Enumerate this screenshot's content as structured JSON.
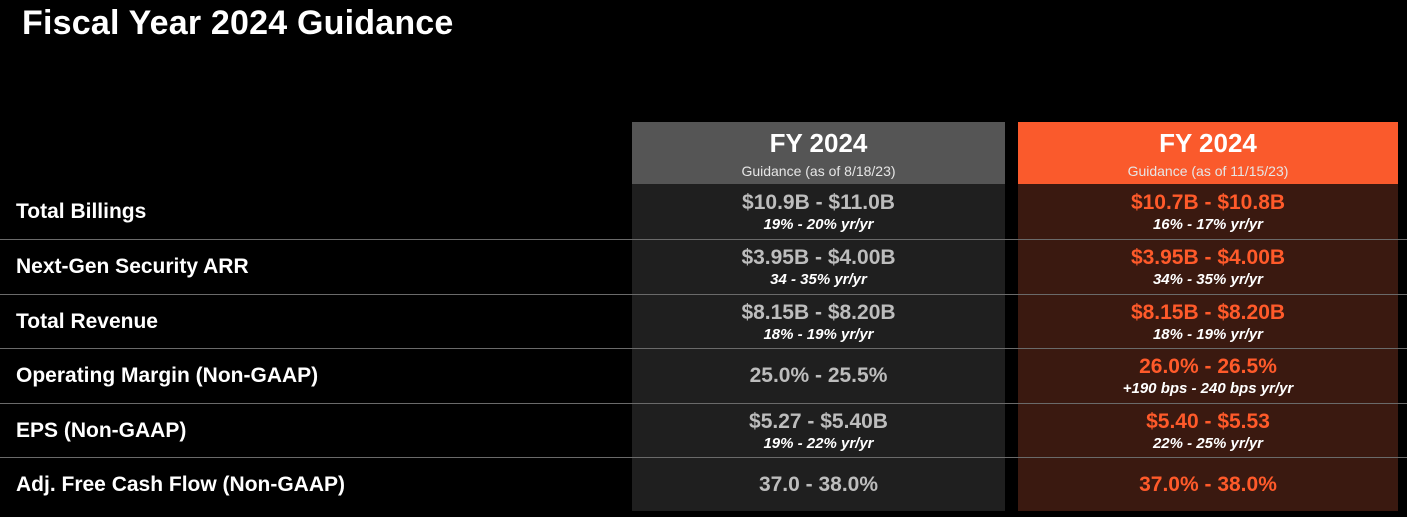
{
  "title": "Fiscal Year 2024 Guidance",
  "columns": [
    {
      "heading": "FY 2024",
      "subheading": "Guidance (as of 8/18/23)"
    },
    {
      "heading": "FY 2024",
      "subheading": "Guidance (as of 11/15/23)"
    }
  ],
  "rows": [
    {
      "label": "Total Billings",
      "old": {
        "value": "$10.9B - $11.0B",
        "growth": "19% - 20% yr/yr"
      },
      "new": {
        "value": "$10.7B - $10.8B",
        "growth": "16% - 17% yr/yr"
      }
    },
    {
      "label": "Next-Gen Security ARR",
      "old": {
        "value": "$3.95B - $4.00B",
        "growth": "34 - 35% yr/yr"
      },
      "new": {
        "value": "$3.95B - $4.00B",
        "growth": "34% - 35% yr/yr"
      }
    },
    {
      "label": "Total Revenue",
      "old": {
        "value": "$8.15B - $8.20B",
        "growth": "18% - 19% yr/yr"
      },
      "new": {
        "value": "$8.15B - $8.20B",
        "growth": "18% - 19% yr/yr"
      }
    },
    {
      "label": "Operating Margin (Non-GAAP)",
      "old": {
        "value": "25.0% - 25.5%",
        "growth": ""
      },
      "new": {
        "value": "26.0% - 26.5%",
        "growth": "+190 bps - 240 bps yr/yr"
      }
    },
    {
      "label": "EPS (Non-GAAP)",
      "old": {
        "value": "$5.27 - $5.40B",
        "growth": "19% - 22% yr/yr"
      },
      "new": {
        "value": "$5.40 - $5.53",
        "growth": "22% - 25% yr/yr"
      }
    },
    {
      "label": "Adj. Free Cash Flow (Non-GAAP)",
      "old": {
        "value": "37.0 - 38.0%",
        "growth": ""
      },
      "new": {
        "value": "37.0% - 38.0%",
        "growth": ""
      }
    }
  ],
  "colors": {
    "background": "#000000",
    "old_header": "#555555",
    "new_header": "#fa5a2c",
    "old_body": "#1f1f1f",
    "new_body": "#3a1910",
    "new_value": "#ff5a2a",
    "old_value": "#bdbdbd"
  }
}
